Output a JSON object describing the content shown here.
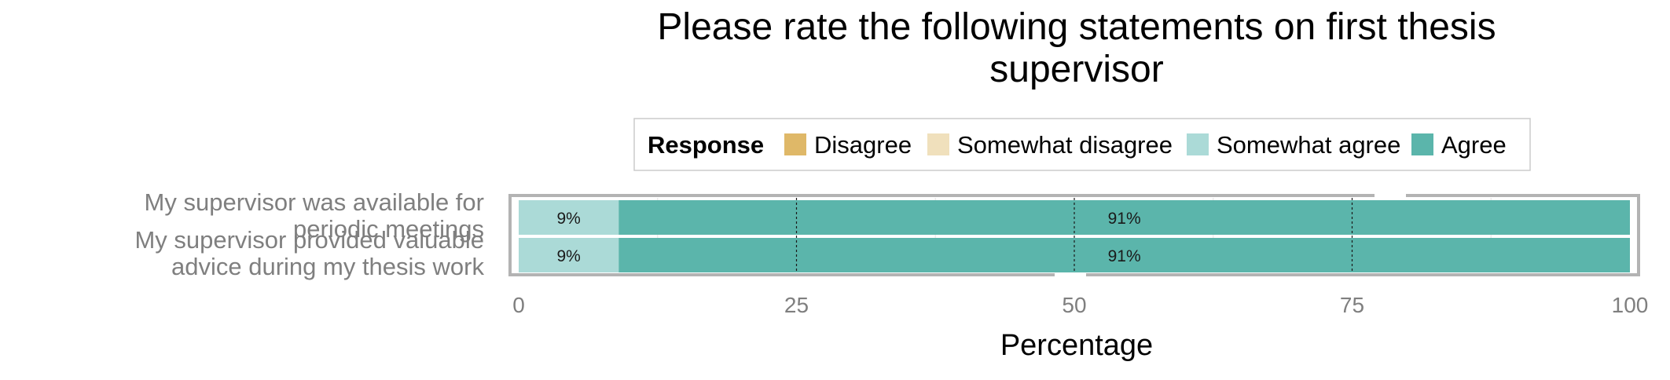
{
  "chart_data": {
    "type": "bar",
    "orientation": "horizontal",
    "stacked": true,
    "title": "Please rate the following statements on first thesis supervisor",
    "xlabel": "Percentage",
    "ylabel": "",
    "xlim": [
      0,
      100
    ],
    "x_ticks": [
      "0",
      "25",
      "50",
      "75",
      "100"
    ],
    "legend": {
      "title": "Response",
      "placement": "top",
      "entries": [
        "Disagree",
        "Somewhat disagree",
        "Somewhat agree",
        "Agree"
      ]
    },
    "categories": [
      "My supervisor was available for periodic meetings",
      "My supervisor provided valuable advice during my thesis work"
    ],
    "series": [
      {
        "name": "Disagree",
        "color": "#dfb868",
        "values": [
          0,
          0
        ]
      },
      {
        "name": "Somewhat disagree",
        "color": "#f0e0bc",
        "values": [
          0,
          0
        ]
      },
      {
        "name": "Somewhat agree",
        "color": "#abdad7",
        "values": [
          9,
          9
        ],
        "labels": [
          "9%",
          "9%"
        ]
      },
      {
        "name": "Agree",
        "color": "#5bb5ab",
        "values": [
          91,
          91
        ],
        "labels": [
          "91%",
          "91%"
        ]
      }
    ],
    "grid": true
  }
}
